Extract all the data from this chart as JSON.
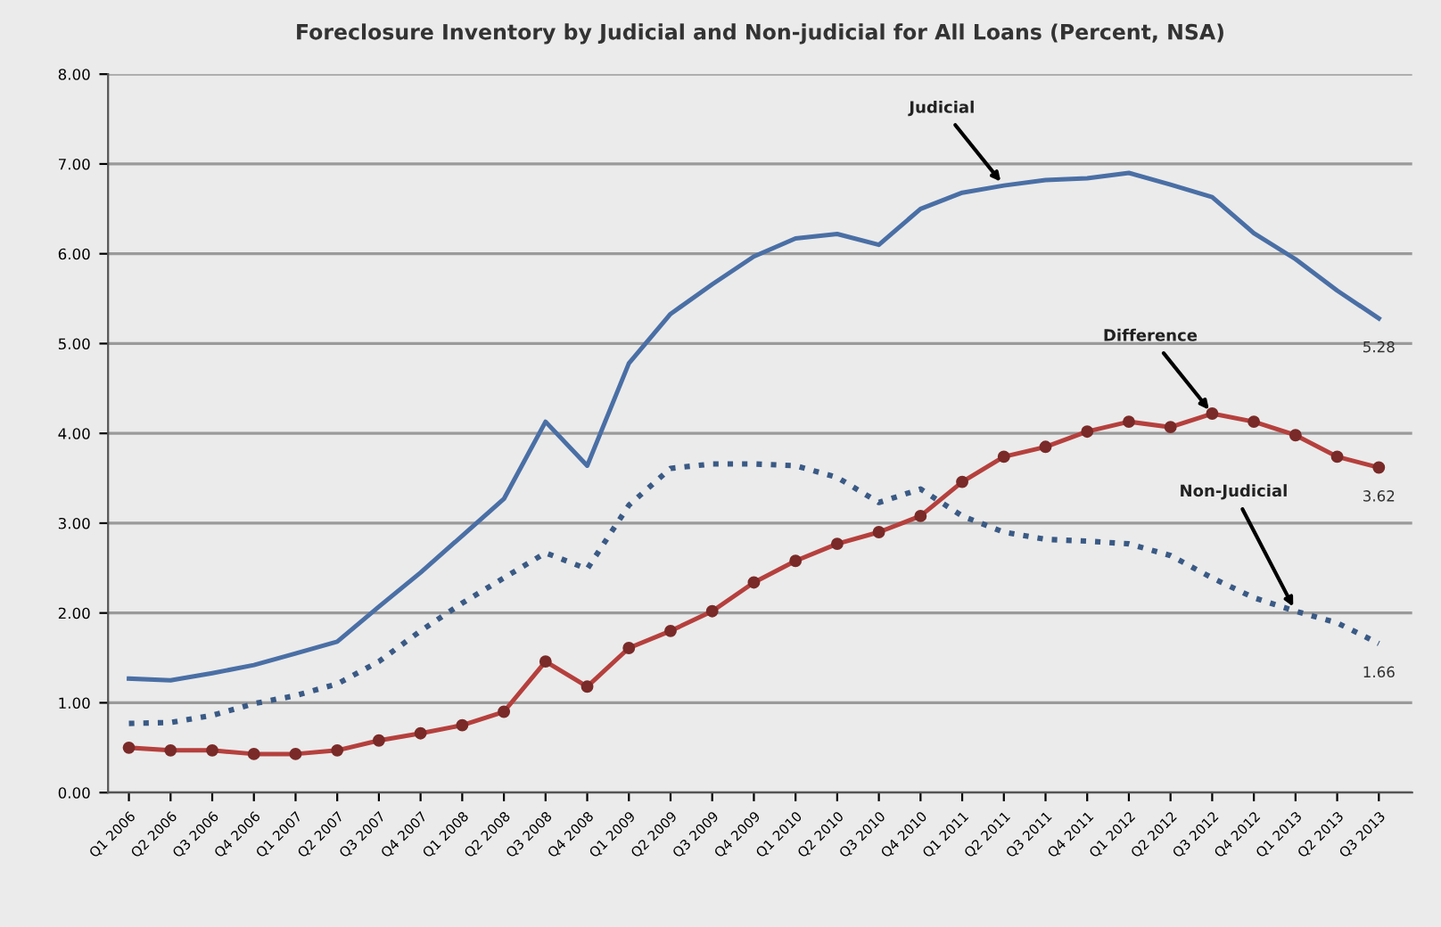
{
  "chart_data": {
    "type": "line",
    "title": "Foreclosure Inventory by Judicial and Non-judicial for All Loans (Percent, NSA)",
    "categories": [
      "Q1 2006",
      "Q2 2006",
      "Q3 2006",
      "Q4 2006",
      "Q1 2007",
      "Q2 2007",
      "Q3 2007",
      "Q4 2007",
      "Q1 2008",
      "Q2 2008",
      "Q3 2008",
      "Q4 2008",
      "Q1 2009",
      "Q2 2009",
      "Q3 2009",
      "Q4 2009",
      "Q1 2010",
      "Q2 2010",
      "Q3 2010",
      "Q4 2010",
      "Q1 2011",
      "Q2 2011",
      "Q3 2011",
      "Q4 2011",
      "Q1 2012",
      "Q2 2012",
      "Q3 2012",
      "Q4 2012",
      "Q1 2013",
      "Q2 2013",
      "Q3 2013"
    ],
    "series": [
      {
        "color": "#4a6fa5",
        "marker": "none",
        "line_style": "solid",
        "values": [
          1.27,
          1.25,
          1.33,
          1.42,
          1.55,
          1.68,
          2.07,
          2.45,
          2.86,
          3.27,
          4.13,
          3.64,
          4.78,
          5.33,
          5.66,
          5.97,
          6.17,
          6.22,
          6.1,
          6.5,
          6.68,
          6.76,
          6.82,
          6.84,
          6.9,
          6.77,
          6.63,
          6.23,
          5.94,
          5.59,
          5.28
        ],
        "value_labels": [
          null,
          null,
          null,
          null,
          null,
          null,
          null,
          null,
          null,
          null,
          null,
          null,
          null,
          null,
          null,
          null,
          null,
          null,
          null,
          null,
          null,
          null,
          null,
          null,
          null,
          null,
          null,
          null,
          null,
          null,
          "5.28"
        ]
      },
      {
        "color": "#3a5a85",
        "marker": "none",
        "line_style": "dotted",
        "values": [
          0.77,
          0.78,
          0.86,
          0.99,
          1.08,
          1.21,
          1.46,
          1.8,
          2.11,
          2.39,
          2.67,
          2.49,
          3.2,
          3.61,
          3.66,
          3.66,
          3.64,
          3.51,
          3.23,
          3.38,
          3.08,
          2.9,
          2.82,
          2.8,
          2.77,
          2.64,
          2.39,
          2.17,
          2.02,
          1.89,
          1.66
        ],
        "value_labels": [
          null,
          null,
          null,
          null,
          null,
          null,
          null,
          null,
          null,
          null,
          null,
          null,
          null,
          null,
          null,
          null,
          null,
          null,
          null,
          null,
          null,
          null,
          null,
          null,
          null,
          null,
          null,
          null,
          null,
          null,
          "1.66"
        ]
      },
      {
        "color": "#b5403d",
        "marker": "circle",
        "line_style": "solid",
        "values": [
          0.5,
          0.47,
          0.47,
          0.43,
          0.43,
          0.47,
          0.58,
          0.66,
          0.75,
          0.9,
          1.46,
          1.18,
          1.61,
          1.8,
          2.02,
          2.34,
          2.58,
          2.77,
          2.9,
          3.08,
          3.46,
          3.74,
          3.85,
          4.02,
          4.13,
          4.07,
          4.22,
          4.13,
          3.98,
          3.74,
          3.62
        ],
        "value_labels": [
          null,
          null,
          null,
          null,
          null,
          null,
          null,
          null,
          null,
          null,
          null,
          null,
          null,
          null,
          null,
          null,
          null,
          null,
          null,
          null,
          null,
          null,
          null,
          null,
          null,
          null,
          null,
          null,
          null,
          null,
          "3.62"
        ]
      }
    ],
    "ylim": [
      0,
      8
    ],
    "yticks": [
      {
        "value": 0,
        "label": "0.00"
      },
      {
        "value": 1,
        "label": "1.00"
      },
      {
        "value": 2,
        "label": "2.00"
      },
      {
        "value": 3,
        "label": "3.00"
      },
      {
        "value": 4,
        "label": "4.00"
      },
      {
        "value": 5,
        "label": "5.00"
      },
      {
        "value": 6,
        "label": "6.00"
      },
      {
        "value": 7,
        "label": "7.00"
      },
      {
        "value": 8,
        "label": "8.00"
      }
    ],
    "grid": "y",
    "legend": false,
    "annotations": [
      {
        "text": "Judicial",
        "x": "Q2 2011",
        "y": 6.76
      },
      {
        "text": "Difference",
        "x": "Q3 2012",
        "y": 4.22
      },
      {
        "text": "Non-Judicial",
        "x": "Q1 2013",
        "y": 2.02
      }
    ]
  }
}
